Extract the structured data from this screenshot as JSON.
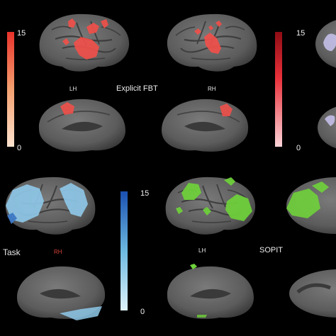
{
  "panels": {
    "top_left": {
      "hemi_left": "LH",
      "hemi_right": "RH",
      "condition": "Explicit FBT",
      "colorbar": {
        "max": "15",
        "min": "0",
        "color_high": "#e8322a",
        "color_low": "#fde3cf"
      },
      "overlay_color": "#f0504a"
    },
    "top_right": {
      "colorbar": {
        "max": "15",
        "min": "0",
        "color_high": "#8e0c14",
        "color_low": "#fbd3d8"
      },
      "overlay_color": "#c9c4f0"
    },
    "bottom_left": {
      "condition": "Task",
      "hemi_right": "RH",
      "colorbar": {
        "max": "15",
        "min": "0",
        "color_high": "#1a4fb0",
        "color_low": "#dff3fb"
      },
      "overlay_color": "#8fc9ea"
    },
    "bottom_right": {
      "hemi_left": "LH",
      "condition": "SOPIT",
      "overlay_color": "#6fd23a"
    }
  },
  "colors": {
    "background": "#000000",
    "cortex": "#6e6e6e",
    "cortex_dark": "#3c3c3c"
  }
}
